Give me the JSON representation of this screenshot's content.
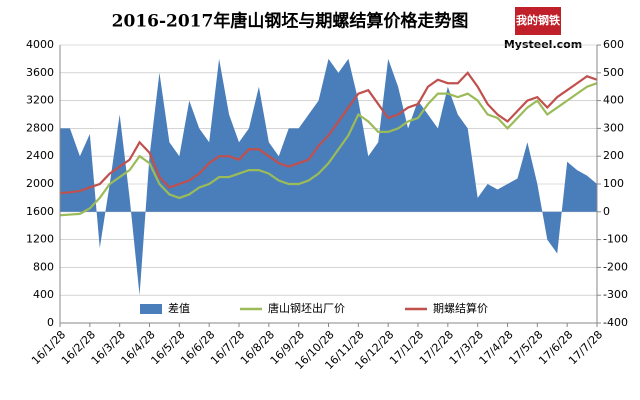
{
  "chart_data": {
    "type": "line",
    "title": "2016-2017年唐山钢坯与期螺结算价格走势图",
    "logo": {
      "cn": "我的钢铁",
      "en": "Mysteel.com"
    },
    "categories": [
      "16/1/28",
      null,
      null,
      "16/2/28",
      null,
      null,
      "16/3/28",
      null,
      null,
      "16/4/28",
      null,
      null,
      "16/5/28",
      null,
      null,
      "16/6/28",
      null,
      null,
      "16/7/28",
      null,
      null,
      "16/8/28",
      null,
      null,
      "16/9/28",
      null,
      null,
      "16/10/28",
      null,
      null,
      "16/11/28",
      null,
      null,
      "16/12/28",
      null,
      null,
      "17/1/28",
      null,
      null,
      "17/2/28",
      null,
      null,
      "17/3/28",
      null,
      null,
      "17/4/28",
      null,
      null,
      "17/5/28",
      null,
      null,
      "17/6/28",
      null,
      null,
      "17/7/28"
    ],
    "ylim": [
      0,
      4000
    ],
    "yticks": [
      0,
      400,
      800,
      1200,
      1600,
      2000,
      2400,
      2800,
      3200,
      3600,
      4000
    ],
    "y2lim": [
      -400,
      600
    ],
    "y2ticks": [
      -400,
      -300,
      -200,
      -100,
      0,
      100,
      200,
      300,
      400,
      500,
      600
    ],
    "grid": true,
    "series": [
      {
        "name": "差值",
        "type": "area",
        "axis": "y2",
        "color": "#4a7ebb",
        "values": [
          300,
          300,
          200,
          280,
          -130,
          100,
          350,
          50,
          -300,
          200,
          500,
          250,
          200,
          400,
          300,
          250,
          550,
          350,
          250,
          300,
          450,
          250,
          200,
          300,
          300,
          350,
          400,
          550,
          500,
          550,
          400,
          200,
          250,
          550,
          450,
          300,
          400,
          350,
          300,
          450,
          350,
          300,
          50,
          100,
          80,
          100,
          120,
          250,
          100,
          -100,
          -150,
          180,
          150,
          130,
          100
        ]
      },
      {
        "name": "唐山钢坯出厂价",
        "type": "line",
        "color": "#9bbb59",
        "values": [
          1550,
          1560,
          1570,
          1650,
          1800,
          2000,
          2100,
          2200,
          2400,
          2300,
          2000,
          1850,
          1800,
          1850,
          1950,
          2000,
          2100,
          2100,
          2150,
          2200,
          2200,
          2150,
          2050,
          2000,
          2000,
          2050,
          2150,
          2300,
          2500,
          2700,
          3000,
          2900,
          2750,
          2750,
          2800,
          2900,
          2950,
          3150,
          3300,
          3300,
          3250,
          3300,
          3200,
          3000,
          2950,
          2800,
          2950,
          3100,
          3200,
          3000,
          3100,
          3200,
          3300,
          3400,
          3450
        ]
      },
      {
        "name": "期螺结算价",
        "type": "line",
        "color": "#c0504d",
        "values": [
          1870,
          1880,
          1900,
          1950,
          2000,
          2150,
          2250,
          2350,
          2600,
          2450,
          2100,
          1950,
          2000,
          2050,
          2150,
          2300,
          2400,
          2400,
          2350,
          2500,
          2500,
          2400,
          2300,
          2250,
          2300,
          2350,
          2550,
          2700,
          2900,
          3100,
          3300,
          3350,
          3150,
          2950,
          3000,
          3100,
          3150,
          3400,
          3500,
          3450,
          3450,
          3600,
          3400,
          3150,
          3000,
          2900,
          3050,
          3200,
          3250,
          3100,
          3250,
          3350,
          3450,
          3550,
          3500
        ]
      }
    ]
  }
}
